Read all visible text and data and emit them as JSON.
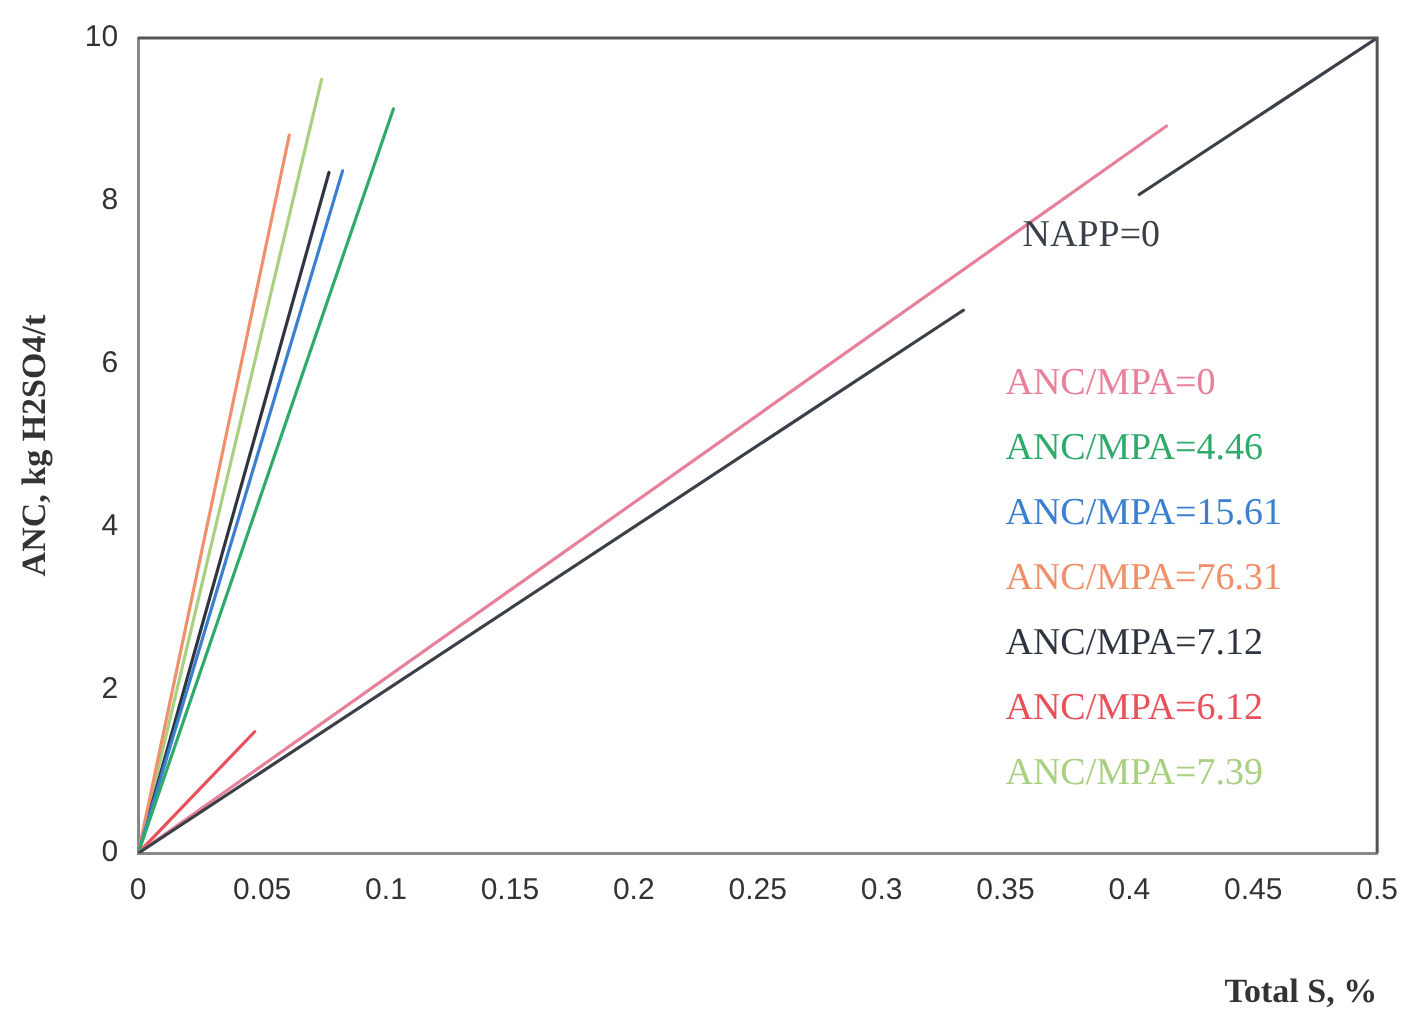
{
  "chart_data": {
    "type": "line",
    "xlabel": "Total S, %",
    "ylabel": "ANC, kg H2SO4/t",
    "xlim": [
      0,
      0.5
    ],
    "xticks": [
      0,
      0.05,
      0.1,
      0.15,
      0.2,
      0.25,
      0.3,
      0.35,
      0.4,
      0.45,
      0.5
    ],
    "ylim": [
      0,
      10
    ],
    "yticks": [
      0,
      2,
      4,
      6,
      8,
      10
    ],
    "grid": false,
    "legend": false,
    "marker": "none",
    "line_style": "solid",
    "series": [
      {
        "name": "NAPP=0",
        "color": "#3a3f48",
        "x": [
          0,
          0.333,
          null,
          0.404,
          0.5
        ],
        "values": [
          0,
          6.66,
          null,
          8.08,
          10
        ]
      },
      {
        "name": "ANC/MPA=0",
        "color": "#e8809a",
        "x": [
          0,
          0.415
        ],
        "values": [
          0,
          8.92
        ]
      },
      {
        "name": "ANC/MPA=4.46",
        "color": "#2eaa6a",
        "x": [
          0,
          0.103
        ],
        "values": [
          0,
          9.13
        ]
      },
      {
        "name": "ANC/MPA=15.61",
        "color": "#3a7fd0",
        "x": [
          0,
          0.0825
        ],
        "values": [
          0,
          8.37
        ]
      },
      {
        "name": "ANC/MPA=76.31",
        "color": "#f0906a",
        "x": [
          0,
          0.061
        ],
        "values": [
          0,
          8.81
        ]
      },
      {
        "name": "ANC/MPA=7.12",
        "color": "#2f3540",
        "x": [
          0,
          0.077
        ],
        "values": [
          0,
          8.35
        ]
      },
      {
        "name": "ANC/MPA=6.12",
        "color": "#e8505a",
        "x": [
          0,
          0.047
        ],
        "values": [
          0,
          1.49
        ]
      },
      {
        "name": "ANC/MPA=7.39",
        "color": "#a8d080",
        "x": [
          0,
          0.074
        ],
        "values": [
          0,
          9.49
        ]
      }
    ]
  }
}
